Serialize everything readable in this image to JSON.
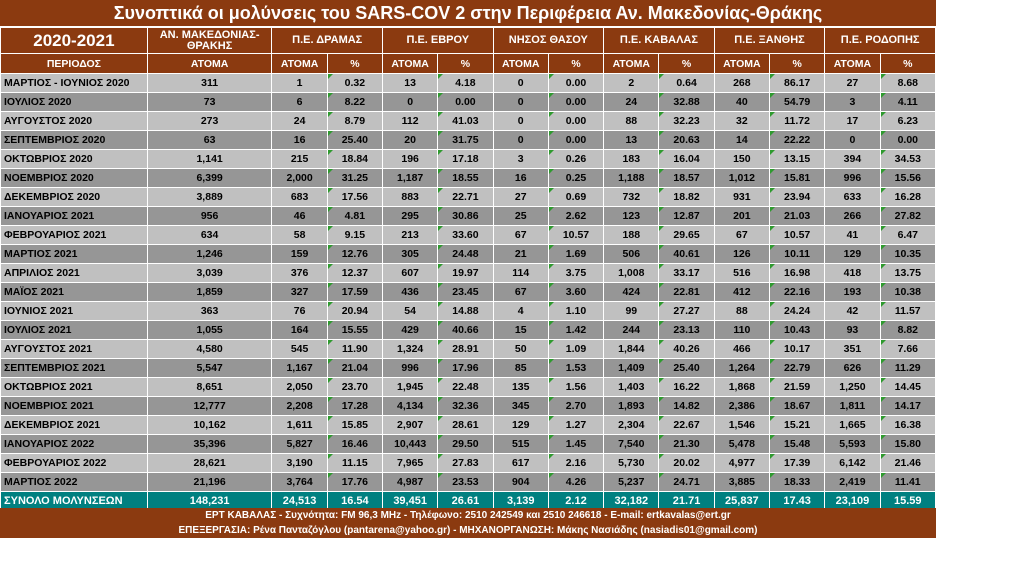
{
  "title": "Συνοπτικά οι μολύνσεις του SARS-COV 2 στην Περιφέρεια Αν. Μακεδονίας-Θράκης",
  "header": {
    "year": "2020-2021",
    "regions": [
      "ΑΝ. ΜΑΚΕΔΟΝΙΑΣ-ΘΡΑΚΗΣ",
      "Π.Ε. ΔΡΑΜΑΣ",
      "Π.Ε. ΕΒΡΟΥ",
      "ΝΗΣΟΣ ΘΑΣΟΥ",
      "Π.Ε. ΚΑΒΑΛΑΣ",
      "Π.Ε. ΞΑΝΘΗΣ",
      "Π.Ε. ΡΟΔΟΠΗΣ"
    ],
    "period_label": "ΠΕΡΙΟΔΟΣ",
    "people_label": "ΑΤΟΜΑ",
    "percent_label": "%"
  },
  "rows": [
    {
      "period": "ΜΑΡΤΙΟΣ - ΙΟΥΝΙΟΣ 2020",
      "v": [
        "311",
        "1",
        "0.32",
        "13",
        "4.18",
        "0",
        "0.00",
        "2",
        "0.64",
        "268",
        "86.17",
        "27",
        "8.68"
      ]
    },
    {
      "period": "ΙΟΥΛΙΟΣ 2020",
      "v": [
        "73",
        "6",
        "8.22",
        "0",
        "0.00",
        "0",
        "0.00",
        "24",
        "32.88",
        "40",
        "54.79",
        "3",
        "4.11"
      ]
    },
    {
      "period": "ΑΥΓΟΥΣΤΟΣ 2020",
      "v": [
        "273",
        "24",
        "8.79",
        "112",
        "41.03",
        "0",
        "0.00",
        "88",
        "32.23",
        "32",
        "11.72",
        "17",
        "6.23"
      ]
    },
    {
      "period": "ΣΕΠΤΕΜΒΡΙΟΣ 2020",
      "v": [
        "63",
        "16",
        "25.40",
        "20",
        "31.75",
        "0",
        "0.00",
        "13",
        "20.63",
        "14",
        "22.22",
        "0",
        "0.00"
      ]
    },
    {
      "period": "ΟΚΤΩΒΡΙΟΣ 2020",
      "v": [
        "1,141",
        "215",
        "18.84",
        "196",
        "17.18",
        "3",
        "0.26",
        "183",
        "16.04",
        "150",
        "13.15",
        "394",
        "34.53"
      ]
    },
    {
      "period": "ΝΟΕΜΒΡΙΟΣ 2020",
      "v": [
        "6,399",
        "2,000",
        "31.25",
        "1,187",
        "18.55",
        "16",
        "0.25",
        "1,188",
        "18.57",
        "1,012",
        "15.81",
        "996",
        "15.56"
      ]
    },
    {
      "period": "ΔΕΚΕΜΒΡΙΟΣ 2020",
      "v": [
        "3,889",
        "683",
        "17.56",
        "883",
        "22.71",
        "27",
        "0.69",
        "732",
        "18.82",
        "931",
        "23.94",
        "633",
        "16.28"
      ]
    },
    {
      "period": "ΙΑΝΟΥΑΡΙΟΣ 2021",
      "v": [
        "956",
        "46",
        "4.81",
        "295",
        "30.86",
        "25",
        "2.62",
        "123",
        "12.87",
        "201",
        "21.03",
        "266",
        "27.82"
      ]
    },
    {
      "period": "ΦΕΒΡΟΥΑΡΙΟΣ 2021",
      "v": [
        "634",
        "58",
        "9.15",
        "213",
        "33.60",
        "67",
        "10.57",
        "188",
        "29.65",
        "67",
        "10.57",
        "41",
        "6.47"
      ]
    },
    {
      "period": "ΜΑΡΤΙΟΣ 2021",
      "v": [
        "1,246",
        "159",
        "12.76",
        "305",
        "24.48",
        "21",
        "1.69",
        "506",
        "40.61",
        "126",
        "10.11",
        "129",
        "10.35"
      ]
    },
    {
      "period": "ΑΠΡΙΛΙΟΣ 2021",
      "v": [
        "3,039",
        "376",
        "12.37",
        "607",
        "19.97",
        "114",
        "3.75",
        "1,008",
        "33.17",
        "516",
        "16.98",
        "418",
        "13.75"
      ]
    },
    {
      "period": "ΜΑΪΟΣ 2021",
      "v": [
        "1,859",
        "327",
        "17.59",
        "436",
        "23.45",
        "67",
        "3.60",
        "424",
        "22.81",
        "412",
        "22.16",
        "193",
        "10.38"
      ]
    },
    {
      "period": "ΙΟΥΝΙΟΣ 2021",
      "v": [
        "363",
        "76",
        "20.94",
        "54",
        "14.88",
        "4",
        "1.10",
        "99",
        "27.27",
        "88",
        "24.24",
        "42",
        "11.57"
      ]
    },
    {
      "period": "ΙΟΥΛΙΟΣ 2021",
      "v": [
        "1,055",
        "164",
        "15.55",
        "429",
        "40.66",
        "15",
        "1.42",
        "244",
        "23.13",
        "110",
        "10.43",
        "93",
        "8.82"
      ]
    },
    {
      "period": "ΑΥΓΟΥΣΤΟΣ 2021",
      "v": [
        "4,580",
        "545",
        "11.90",
        "1,324",
        "28.91",
        "50",
        "1.09",
        "1,844",
        "40.26",
        "466",
        "10.17",
        "351",
        "7.66"
      ]
    },
    {
      "period": "ΣΕΠΤΕΜΒΡΙΟΣ 2021",
      "v": [
        "5,547",
        "1,167",
        "21.04",
        "996",
        "17.96",
        "85",
        "1.53",
        "1,409",
        "25.40",
        "1,264",
        "22.79",
        "626",
        "11.29"
      ]
    },
    {
      "period": "ΟΚΤΩΒΡΙΟΣ 2021",
      "v": [
        "8,651",
        "2,050",
        "23.70",
        "1,945",
        "22.48",
        "135",
        "1.56",
        "1,403",
        "16.22",
        "1,868",
        "21.59",
        "1,250",
        "14.45"
      ]
    },
    {
      "period": "ΝΟΕΜΒΡΙΟΣ 2021",
      "v": [
        "12,777",
        "2,208",
        "17.28",
        "4,134",
        "32.36",
        "345",
        "2.70",
        "1,893",
        "14.82",
        "2,386",
        "18.67",
        "1,811",
        "14.17"
      ]
    },
    {
      "period": "ΔΕΚΕΜΒΡΙΟΣ 2021",
      "v": [
        "10,162",
        "1,611",
        "15.85",
        "2,907",
        "28.61",
        "129",
        "1.27",
        "2,304",
        "22.67",
        "1,546",
        "15.21",
        "1,665",
        "16.38"
      ]
    },
    {
      "period": "ΙΑΝΟΥΑΡΙΟΣ 2022",
      "v": [
        "35,396",
        "5,827",
        "16.46",
        "10,443",
        "29.50",
        "515",
        "1.45",
        "7,540",
        "21.30",
        "5,478",
        "15.48",
        "5,593",
        "15.80"
      ]
    },
    {
      "period": "ΦΕΒΡΟΥΑΡΙΟΣ 2022",
      "v": [
        "28,621",
        "3,190",
        "11.15",
        "7,965",
        "27.83",
        "617",
        "2.16",
        "5,730",
        "20.02",
        "4,977",
        "17.39",
        "6,142",
        "21.46"
      ]
    },
    {
      "period": "ΜΑΡΤΙΟΣ 2022",
      "v": [
        "21,196",
        "3,764",
        "17.76",
        "4,987",
        "23.53",
        "904",
        "4.26",
        "5,237",
        "24.71",
        "3,885",
        "18.33",
        "2,419",
        "11.41"
      ]
    }
  ],
  "total": {
    "period": "ΣΥΝΟΛΟ ΜΟΛΥΝΣΕΩΝ",
    "v": [
      "148,231",
      "24,513",
      "16.54",
      "39,451",
      "26.61",
      "3,139",
      "2.12",
      "32,182",
      "21.71",
      "25,837",
      "17.43",
      "23,109",
      "15.59"
    ]
  },
  "footer": {
    "line1": "ΕΡΤ ΚΑΒΑΛΑΣ - Συχνότητα: FM 96,3 MHz - Τηλέφωνο: 2510 242549 και 2510 246618 - E-mail: ertkavalas@ert.gr",
    "line2": "ΕΠΕΞΕΡΓΑΣΙΑ: Ρένα Πανταζόγλου (pantarena@yahoo.gr) - ΜΗΧΑΝΟΡΓΑΝΩΣΗ: Μάκης Νασιάδης (nasiadis01@gmail.com)"
  },
  "colors": {
    "header_bg": "#8B3A10",
    "row_light": "#c0c0c0",
    "row_dark": "#969696",
    "total_bg": "#008080",
    "marker": "#2e9a2e"
  }
}
